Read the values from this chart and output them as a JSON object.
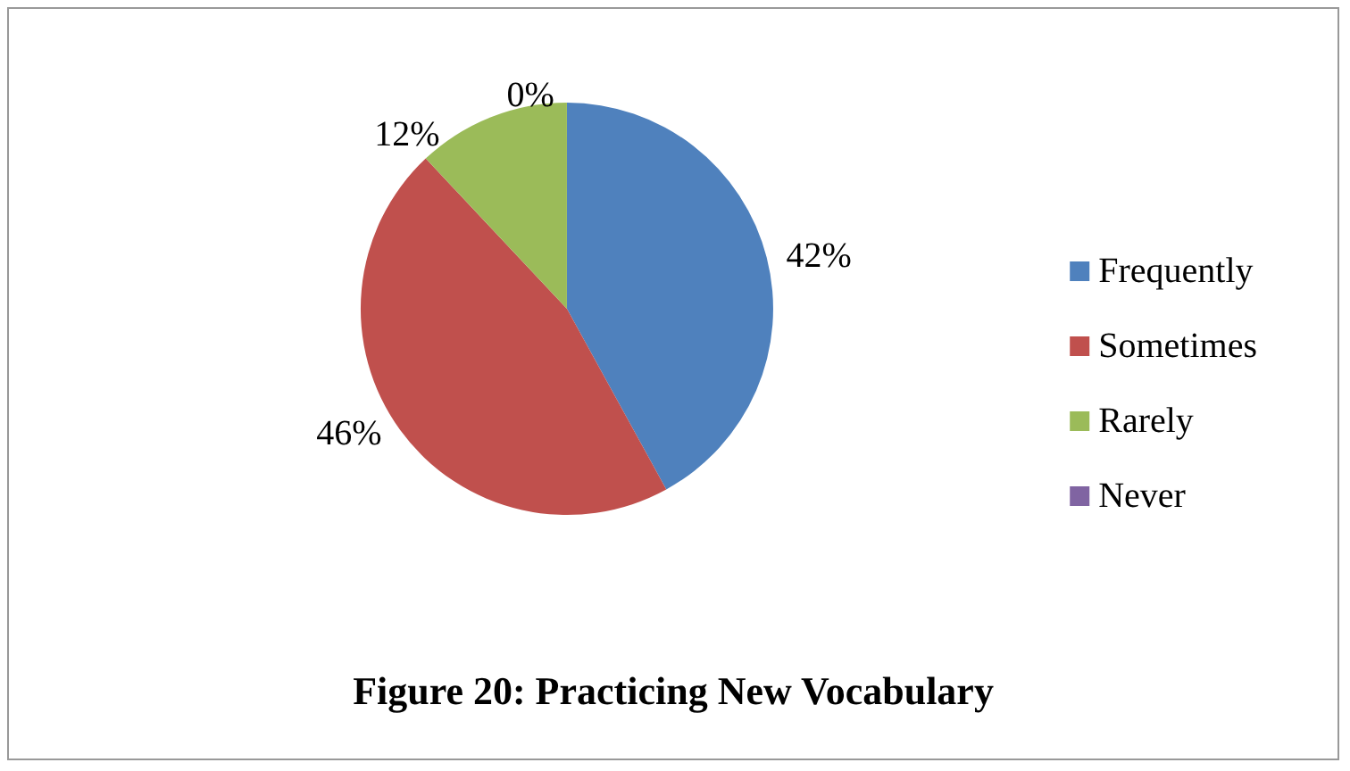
{
  "chart_data": {
    "type": "pie",
    "title": "Figure 20: Practicing New Vocabulary",
    "categories": [
      "Frequently",
      "Sometimes",
      "Rarely",
      "Never"
    ],
    "values": [
      42,
      46,
      12,
      0
    ],
    "value_labels": [
      "42%",
      "46%",
      "12%",
      "0%"
    ],
    "colors": [
      "#4f81bd",
      "#c0504d",
      "#9bbb59",
      "#8064a2"
    ],
    "legend": "right"
  }
}
